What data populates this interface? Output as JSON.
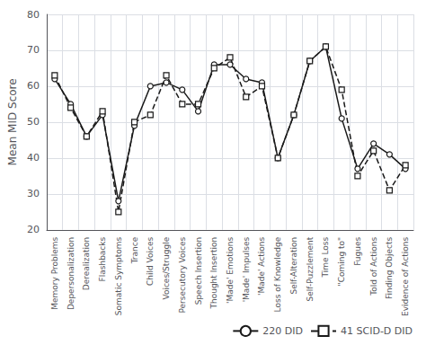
{
  "chart_data": {
    "type": "line",
    "categories": [
      "Memory Problems",
      "Depersonalization",
      "Derealization",
      "Flashbacks",
      "Somatic Symptoms",
      "Trance",
      "Child Voices",
      "Voices/Struggle",
      "Persecutory Voices",
      "Speech Insertion",
      "Thought Insertion",
      "'Made' Emotions",
      "'Made' Impulses",
      "'Made' Actions",
      "Loss of Knowledge",
      "Self-Alteration",
      "Self-Puzzlement",
      "Time Loss",
      "\"Coming to\"",
      "Fugues",
      "Told of Actions",
      "Finding Objects",
      "Evidence of Actions"
    ],
    "series": [
      {
        "name": "220 DID",
        "color": "#1a1a1a",
        "marker": "circle",
        "line_style": "solid",
        "values": [
          62,
          55,
          46,
          52,
          28,
          49,
          60,
          61,
          59,
          53,
          66,
          66,
          62,
          61,
          40,
          52,
          67,
          71,
          51,
          37,
          44,
          41,
          37
        ]
      },
      {
        "name": "41 SCID-D DID",
        "color": "#1a1a1a",
        "marker": "square",
        "line_style": "dashed",
        "values": [
          63,
          54,
          46,
          53,
          25,
          50,
          52,
          63,
          55,
          55,
          65,
          68,
          57,
          60,
          40,
          52,
          67,
          71,
          59,
          35,
          42,
          31,
          38
        ]
      }
    ],
    "ylabel": "Mean MID Score",
    "ylim": [
      20,
      80
    ],
    "yticks": [
      20,
      30,
      40,
      50,
      60,
      70,
      80
    ],
    "grid": true,
    "legend": "lower right"
  }
}
